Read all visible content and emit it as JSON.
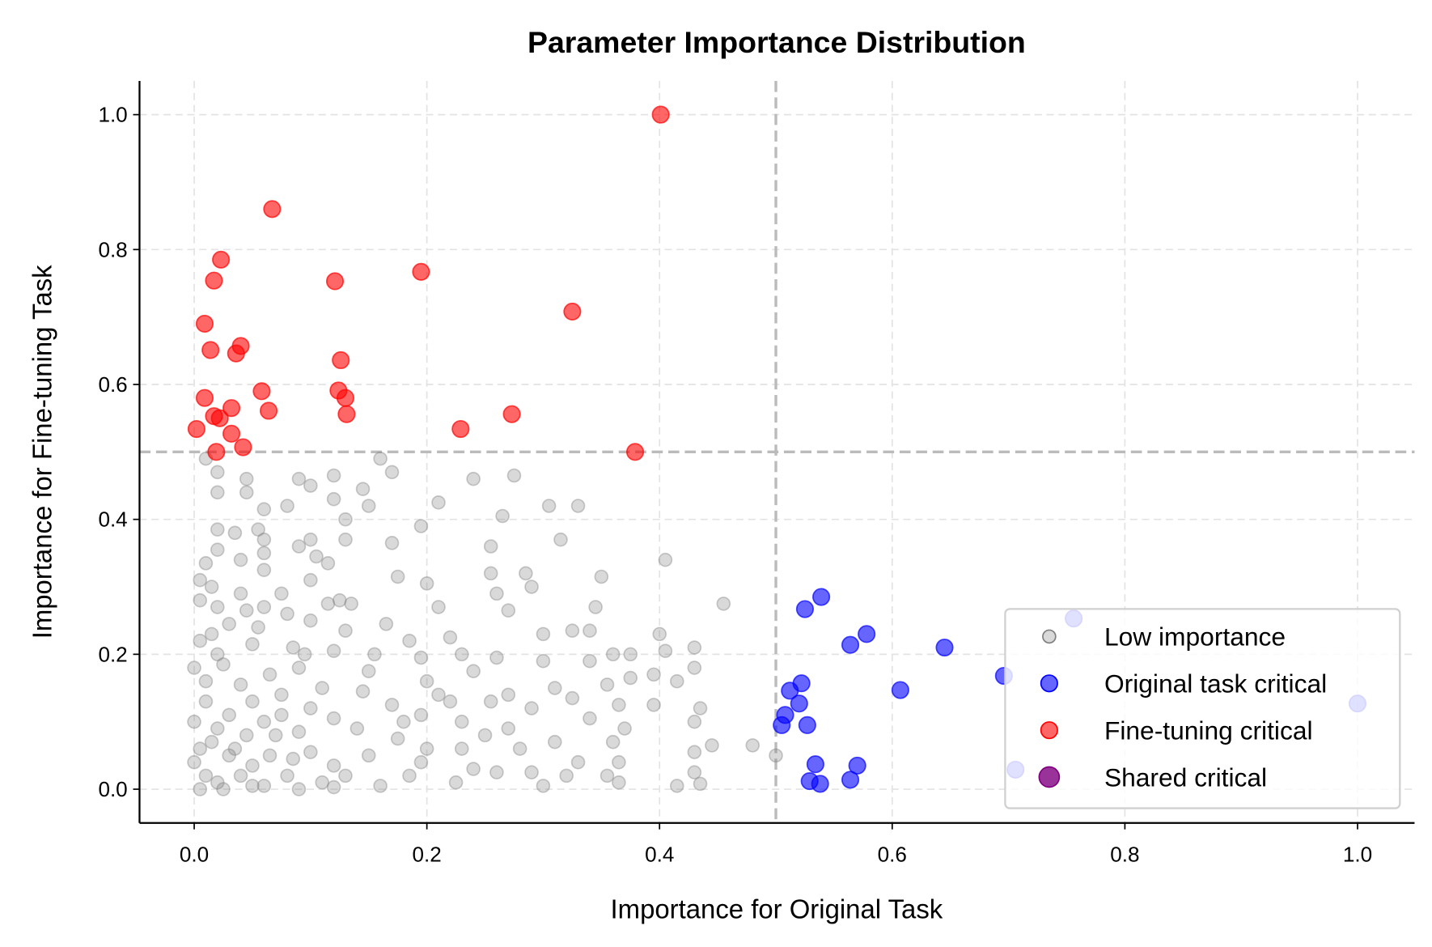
{
  "chart_data": {
    "type": "scatter",
    "title": "Parameter Importance Distribution",
    "xlabel": "Importance for Original Task",
    "ylabel": "Importance for Fine-tuning Task",
    "xlim": [
      -0.047,
      1.049
    ],
    "ylim": [
      -0.05,
      1.05
    ],
    "xticks": [
      "0.0",
      "0.2",
      "0.4",
      "0.6",
      "0.8",
      "1.0"
    ],
    "yticks": [
      "0.0",
      "0.2",
      "0.4",
      "0.6",
      "0.8",
      "1.0"
    ],
    "grid": true,
    "thresholds": {
      "x": 0.5,
      "y": 0.5
    },
    "legend_position": "lower-right",
    "series": [
      {
        "name": "Low importance",
        "color": "#808080",
        "alpha": 0.3,
        "points": [
          [
            0.16,
            0.49
          ],
          [
            0.01,
            0.49
          ],
          [
            0.02,
            0.47
          ],
          [
            0.17,
            0.47
          ],
          [
            0.12,
            0.465
          ],
          [
            0.275,
            0.465
          ],
          [
            0.09,
            0.46
          ],
          [
            0.24,
            0.46
          ],
          [
            0.1,
            0.45
          ],
          [
            0.045,
            0.46
          ],
          [
            0.145,
            0.445
          ],
          [
            0.045,
            0.44
          ],
          [
            0.02,
            0.44
          ],
          [
            0.12,
            0.43
          ],
          [
            0.21,
            0.425
          ],
          [
            0.305,
            0.42
          ],
          [
            0.33,
            0.42
          ],
          [
            0.06,
            0.415
          ],
          [
            0.15,
            0.42
          ],
          [
            0.08,
            0.42
          ],
          [
            0.13,
            0.4
          ],
          [
            0.265,
            0.405
          ],
          [
            0.195,
            0.39
          ],
          [
            0.02,
            0.385
          ],
          [
            0.055,
            0.385
          ],
          [
            0.035,
            0.38
          ],
          [
            0.315,
            0.37
          ],
          [
            0.13,
            0.37
          ],
          [
            0.1,
            0.37
          ],
          [
            0.09,
            0.36
          ],
          [
            0.17,
            0.365
          ],
          [
            0.06,
            0.37
          ],
          [
            0.255,
            0.36
          ],
          [
            0.02,
            0.355
          ],
          [
            0.06,
            0.35
          ],
          [
            0.105,
            0.345
          ],
          [
            0.405,
            0.34
          ],
          [
            0.01,
            0.335
          ],
          [
            0.115,
            0.335
          ],
          [
            0.04,
            0.34
          ],
          [
            0.06,
            0.325
          ],
          [
            0.255,
            0.32
          ],
          [
            0.285,
            0.32
          ],
          [
            0.35,
            0.315
          ],
          [
            0.175,
            0.315
          ],
          [
            0.1,
            0.31
          ],
          [
            0.2,
            0.305
          ],
          [
            0.29,
            0.3
          ],
          [
            0.005,
            0.31
          ],
          [
            0.015,
            0.3
          ],
          [
            0.075,
            0.29
          ],
          [
            0.26,
            0.29
          ],
          [
            0.04,
            0.29
          ],
          [
            0.115,
            0.275
          ],
          [
            0.125,
            0.28
          ],
          [
            0.135,
            0.275
          ],
          [
            0.21,
            0.27
          ],
          [
            0.27,
            0.265
          ],
          [
            0.345,
            0.27
          ],
          [
            0.455,
            0.275
          ],
          [
            0.06,
            0.27
          ],
          [
            0.02,
            0.27
          ],
          [
            0.005,
            0.28
          ],
          [
            0.08,
            0.26
          ],
          [
            0.1,
            0.25
          ],
          [
            0.165,
            0.245
          ],
          [
            0.03,
            0.245
          ],
          [
            0.055,
            0.24
          ],
          [
            0.13,
            0.235
          ],
          [
            0.325,
            0.235
          ],
          [
            0.34,
            0.235
          ],
          [
            0.3,
            0.23
          ],
          [
            0.4,
            0.23
          ],
          [
            0.22,
            0.225
          ],
          [
            0.185,
            0.22
          ],
          [
            0.005,
            0.22
          ],
          [
            0.05,
            0.215
          ],
          [
            0.085,
            0.21
          ],
          [
            0.12,
            0.205
          ],
          [
            0.23,
            0.2
          ],
          [
            0.36,
            0.2
          ],
          [
            0.43,
            0.21
          ],
          [
            0.405,
            0.205
          ],
          [
            0.375,
            0.2
          ],
          [
            0.155,
            0.2
          ],
          [
            0.02,
            0.2
          ],
          [
            0.195,
            0.195
          ],
          [
            0.26,
            0.195
          ],
          [
            0.3,
            0.19
          ],
          [
            0.34,
            0.19
          ],
          [
            0.09,
            0.18
          ],
          [
            0.065,
            0.17
          ],
          [
            0.24,
            0.175
          ],
          [
            0.43,
            0.18
          ],
          [
            0.395,
            0.17
          ],
          [
            0.415,
            0.16
          ],
          [
            0.2,
            0.16
          ],
          [
            0.31,
            0.15
          ],
          [
            0.355,
            0.155
          ],
          [
            0.375,
            0.165
          ],
          [
            0.01,
            0.16
          ],
          [
            0.04,
            0.155
          ],
          [
            0.11,
            0.15
          ],
          [
            0.145,
            0.145
          ],
          [
            0.27,
            0.14
          ],
          [
            0.325,
            0.135
          ],
          [
            0.22,
            0.13
          ],
          [
            0.365,
            0.125
          ],
          [
            0.395,
            0.125
          ],
          [
            0.435,
            0.12
          ],
          [
            0.05,
            0.13
          ],
          [
            0.17,
            0.125
          ],
          [
            0.255,
            0.13
          ],
          [
            0.29,
            0.12
          ],
          [
            0.34,
            0.105
          ],
          [
            0.43,
            0.1
          ],
          [
            0.075,
            0.11
          ],
          [
            0.12,
            0.105
          ],
          [
            0.195,
            0.11
          ],
          [
            0.23,
            0.1
          ],
          [
            0.37,
            0.09
          ],
          [
            0.48,
            0.065
          ],
          [
            0.5,
            0.05
          ],
          [
            0.445,
            0.065
          ],
          [
            0.43,
            0.055
          ],
          [
            0.31,
            0.07
          ],
          [
            0.36,
            0.07
          ],
          [
            0.02,
            0.09
          ],
          [
            0.045,
            0.08
          ],
          [
            0.09,
            0.085
          ],
          [
            0.14,
            0.09
          ],
          [
            0.175,
            0.075
          ],
          [
            0.25,
            0.08
          ],
          [
            0.28,
            0.06
          ],
          [
            0.005,
            0.06
          ],
          [
            0.03,
            0.05
          ],
          [
            0.065,
            0.05
          ],
          [
            0.1,
            0.055
          ],
          [
            0.15,
            0.05
          ],
          [
            0.2,
            0.06
          ],
          [
            0.33,
            0.04
          ],
          [
            0.365,
            0.04
          ],
          [
            0.43,
            0.025
          ],
          [
            0.415,
            0.005
          ],
          [
            0.435,
            0.008
          ],
          [
            0.3,
            0.005
          ],
          [
            0.355,
            0.02
          ],
          [
            0.365,
            0.01
          ],
          [
            0.26,
            0.025
          ],
          [
            0.225,
            0.01
          ],
          [
            0.185,
            0.02
          ],
          [
            0.13,
            0.02
          ],
          [
            0.08,
            0.02
          ],
          [
            0.04,
            0.02
          ],
          [
            0.01,
            0.02
          ],
          [
            0.0,
            0.04
          ],
          [
            0.02,
            0.01
          ],
          [
            0.06,
            0.005
          ],
          [
            0.11,
            0.01
          ],
          [
            0.16,
            0.005
          ],
          [
            0.195,
            0.04
          ],
          [
            0.29,
            0.025
          ],
          [
            0.32,
            0.02
          ],
          [
            0.0,
            0.1
          ],
          [
            0.01,
            0.13
          ],
          [
            0.03,
            0.11
          ],
          [
            0.06,
            0.1
          ],
          [
            0.015,
            0.07
          ],
          [
            0.05,
            0.035
          ],
          [
            0.085,
            0.045
          ],
          [
            0.12,
            0.035
          ],
          [
            0.025,
            0.185
          ],
          [
            0.075,
            0.14
          ],
          [
            0.1,
            0.12
          ],
          [
            0.035,
            0.06
          ],
          [
            0.07,
            0.08
          ],
          [
            0.0,
            0.18
          ],
          [
            0.015,
            0.23
          ],
          [
            0.045,
            0.265
          ],
          [
            0.095,
            0.2
          ],
          [
            0.15,
            0.175
          ],
          [
            0.18,
            0.1
          ],
          [
            0.21,
            0.14
          ],
          [
            0.23,
            0.06
          ],
          [
            0.24,
            0.03
          ],
          [
            0.27,
            0.09
          ],
          [
            0.005,
            0.0
          ],
          [
            0.025,
            0.0
          ],
          [
            0.05,
            0.005
          ],
          [
            0.09,
            0.0
          ],
          [
            0.12,
            0.003
          ]
        ]
      },
      {
        "name": "Original task critical",
        "color": "#0000ff",
        "alpha": 0.6,
        "points": [
          [
            0.539,
            0.285
          ],
          [
            0.525,
            0.267
          ],
          [
            0.578,
            0.23
          ],
          [
            0.564,
            0.214
          ],
          [
            0.645,
            0.21
          ],
          [
            0.756,
            0.253
          ],
          [
            0.696,
            0.168
          ],
          [
            0.607,
            0.147
          ],
          [
            0.522,
            0.157
          ],
          [
            0.512,
            0.146
          ],
          [
            0.52,
            0.127
          ],
          [
            0.508,
            0.11
          ],
          [
            0.505,
            0.095
          ],
          [
            0.527,
            0.095
          ],
          [
            1.0,
            0.127
          ],
          [
            0.706,
            0.029
          ],
          [
            0.534,
            0.037
          ],
          [
            0.57,
            0.035
          ],
          [
            0.529,
            0.012
          ],
          [
            0.538,
            0.008
          ],
          [
            0.564,
            0.014
          ]
        ]
      },
      {
        "name": "Fine-tuning critical",
        "color": "#ff0000",
        "alpha": 0.6,
        "points": [
          [
            0.401,
            1.0
          ],
          [
            0.067,
            0.86
          ],
          [
            0.023,
            0.785
          ],
          [
            0.017,
            0.754
          ],
          [
            0.121,
            0.753
          ],
          [
            0.195,
            0.767
          ],
          [
            0.325,
            0.708
          ],
          [
            0.009,
            0.69
          ],
          [
            0.014,
            0.651
          ],
          [
            0.04,
            0.657
          ],
          [
            0.036,
            0.646
          ],
          [
            0.126,
            0.636
          ],
          [
            0.058,
            0.59
          ],
          [
            0.124,
            0.591
          ],
          [
            0.009,
            0.58
          ],
          [
            0.13,
            0.58
          ],
          [
            0.032,
            0.565
          ],
          [
            0.064,
            0.561
          ],
          [
            0.131,
            0.556
          ],
          [
            0.273,
            0.556
          ],
          [
            0.017,
            0.553
          ],
          [
            0.022,
            0.55
          ],
          [
            0.002,
            0.534
          ],
          [
            0.229,
            0.534
          ],
          [
            0.032,
            0.527
          ],
          [
            0.042,
            0.507
          ],
          [
            0.019,
            0.5
          ],
          [
            0.379,
            0.5
          ]
        ]
      },
      {
        "name": "Shared critical",
        "color": "#800080",
        "alpha": 0.8,
        "points": []
      }
    ]
  }
}
